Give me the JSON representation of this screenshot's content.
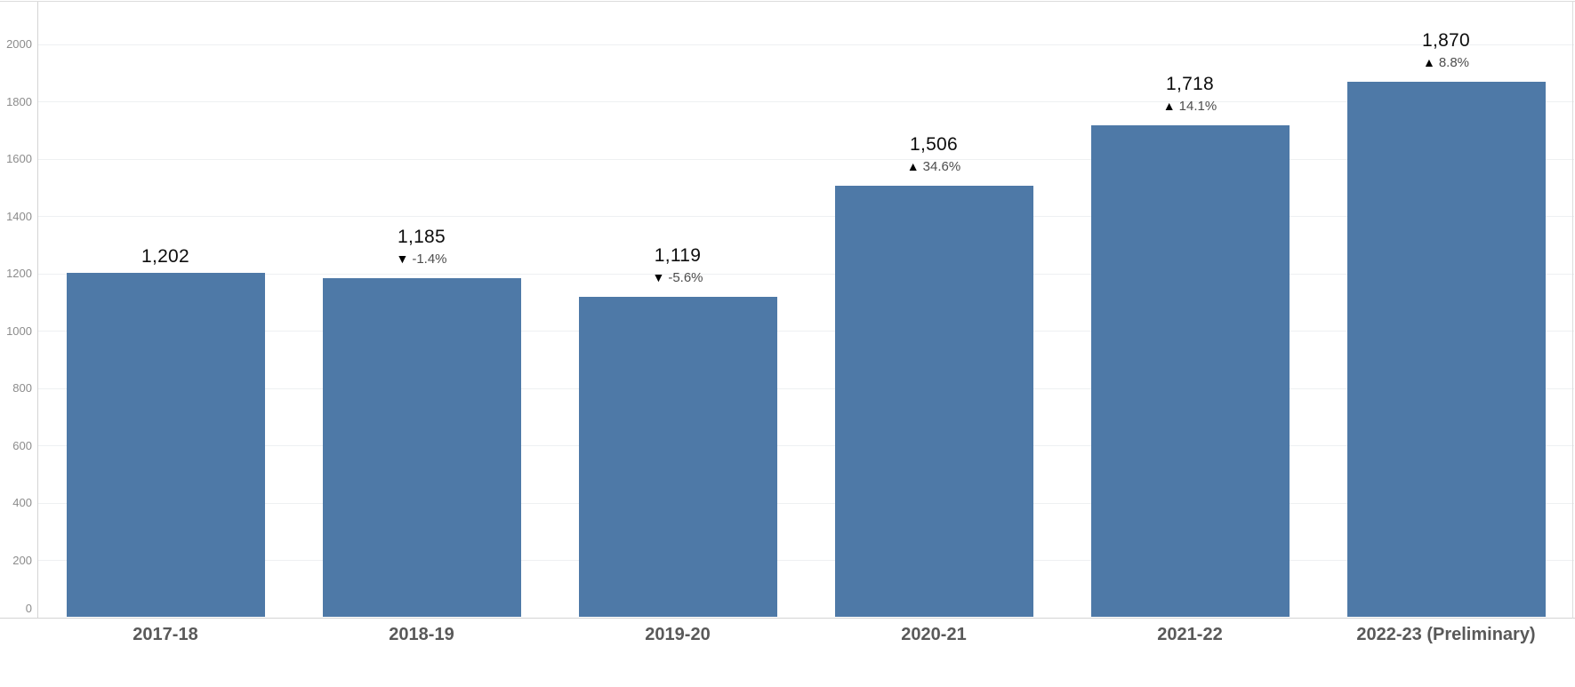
{
  "chart_data": {
    "type": "bar",
    "categories": [
      "2017-18",
      "2018-19",
      "2019-20",
      "2020-21",
      "2021-22",
      "2022-23 (Preliminary)"
    ],
    "values": [
      1202,
      1185,
      1119,
      1506,
      1718,
      1870
    ],
    "value_labels": [
      "1,202",
      "1,185",
      "1,119",
      "1,506",
      "1,718",
      "1,870"
    ],
    "changes": [
      null,
      {
        "direction": "down",
        "symbol": "▼",
        "text": "-1.4%"
      },
      {
        "direction": "down",
        "symbol": "▼",
        "text": "-5.6%"
      },
      {
        "direction": "up",
        "symbol": "▲",
        "text": "34.6%"
      },
      {
        "direction": "up",
        "symbol": "▲",
        "text": "14.1%"
      },
      {
        "direction": "up",
        "symbol": "▲",
        "text": "8.8%"
      }
    ],
    "ylim": [
      0,
      2000
    ],
    "yticks": [
      0,
      200,
      400,
      600,
      800,
      1000,
      1200,
      1400,
      1600,
      1800,
      2000
    ],
    "grid": true,
    "xlabel": "",
    "ylabel": "",
    "colors": {
      "bar": "#4e79a7",
      "value_label": "#0d0d0d",
      "change_symbol": "#000000",
      "change_text": "#4d4d4d",
      "category_label": "#595959",
      "tick_label": "#8c8c8c",
      "gridline": "#eef0f2",
      "axis_line": "#d4d4d4",
      "border": "#dcdcdc",
      "background": "#ffffff"
    }
  }
}
